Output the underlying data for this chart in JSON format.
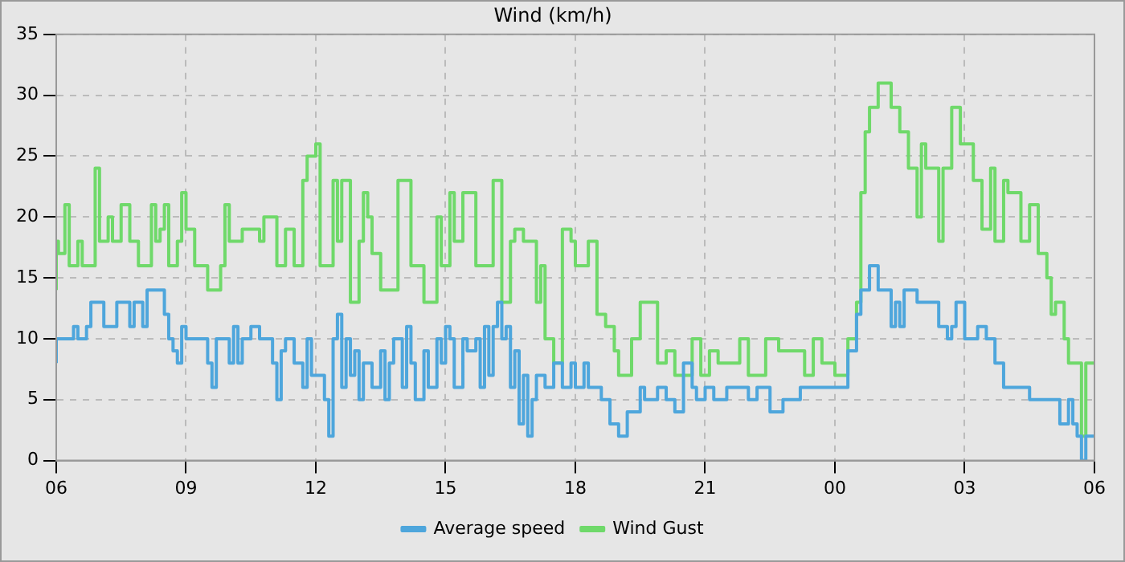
{
  "chart_data": {
    "type": "step",
    "title": "Wind (km/h)",
    "legend": "bottom",
    "grid": true,
    "marker": "none",
    "line_style": "solid",
    "xlim": [
      6,
      30
    ],
    "xticks": [
      {
        "value": 6,
        "label": "06"
      },
      {
        "value": 9,
        "label": "09"
      },
      {
        "value": 12,
        "label": "12"
      },
      {
        "value": 15,
        "label": "15"
      },
      {
        "value": 18,
        "label": "18"
      },
      {
        "value": 21,
        "label": "21"
      },
      {
        "value": 24,
        "label": "00"
      },
      {
        "value": 27,
        "label": "03"
      },
      {
        "value": 30,
        "label": "06"
      }
    ],
    "ylim": [
      0,
      35
    ],
    "yticks": [
      0,
      5,
      10,
      15,
      20,
      25,
      30,
      35
    ],
    "series": [
      {
        "name": "Average speed",
        "color": "#4ea6dc",
        "x": [
          6.0,
          6.4,
          6.5,
          6.7,
          6.8,
          7.1,
          7.4,
          7.7,
          7.8,
          8.0,
          8.1,
          8.5,
          8.6,
          8.7,
          8.8,
          8.9,
          9.0,
          9.5,
          9.6,
          9.7,
          10.0,
          10.1,
          10.2,
          10.3,
          10.5,
          10.7,
          11.0,
          11.1,
          11.2,
          11.3,
          11.5,
          11.7,
          11.8,
          11.9,
          12.2,
          12.3,
          12.4,
          12.5,
          12.6,
          12.7,
          12.8,
          12.9,
          13.0,
          13.1,
          13.3,
          13.5,
          13.6,
          13.7,
          13.8,
          14.0,
          14.1,
          14.2,
          14.3,
          14.5,
          14.6,
          14.8,
          14.9,
          15.0,
          15.1,
          15.2,
          15.4,
          15.5,
          15.7,
          15.8,
          15.9,
          16.0,
          16.1,
          16.2,
          16.3,
          16.4,
          16.5,
          16.6,
          16.7,
          16.8,
          16.9,
          17.0,
          17.1,
          17.3,
          17.5,
          17.7,
          17.9,
          18.0,
          18.2,
          18.3,
          18.6,
          18.8,
          19.0,
          19.2,
          19.5,
          19.6,
          19.9,
          20.1,
          20.3,
          20.5,
          20.7,
          20.8,
          21.0,
          21.2,
          21.5,
          22.0,
          22.2,
          22.5,
          22.8,
          23.2,
          24.3,
          24.5,
          24.6,
          24.8,
          25.0,
          25.3,
          25.4,
          25.5,
          25.6,
          25.9,
          26.4,
          26.6,
          26.7,
          26.8,
          27.0,
          27.3,
          27.5,
          27.7,
          27.9,
          28.5,
          29.2,
          29.4,
          29.5,
          29.6,
          29.7,
          29.8,
          29.95,
          30.0
        ],
        "values": [
          8,
          10,
          11,
          10,
          11,
          13,
          11,
          13,
          11,
          13,
          11,
          14,
          12,
          10,
          9,
          8,
          11,
          10,
          8,
          6,
          10,
          8,
          11,
          8,
          10,
          11,
          10,
          8,
          5,
          9,
          10,
          8,
          6,
          10,
          7,
          5,
          2,
          10,
          12,
          6,
          10,
          7,
          9,
          5,
          8,
          6,
          9,
          5,
          8,
          10,
          6,
          11,
          8,
          5,
          9,
          6,
          10,
          8,
          11,
          10,
          6,
          10,
          9,
          10,
          6,
          11,
          7,
          11,
          13,
          10,
          11,
          6,
          9,
          3,
          7,
          2,
          5,
          7,
          6,
          8,
          6,
          8,
          6,
          8,
          6,
          5,
          3,
          2,
          4,
          6,
          5,
          6,
          5,
          4,
          8,
          6,
          5,
          6,
          5,
          6,
          5,
          6,
          4,
          5,
          6,
          9,
          12,
          14,
          16,
          14,
          11,
          13,
          11,
          14,
          13,
          11,
          10,
          11,
          13,
          10,
          11,
          10,
          8,
          6,
          5,
          3,
          5,
          3,
          2,
          0,
          2,
          2
        ]
      },
      {
        "name": "Wind Gust",
        "color": "#6fd96a",
        "x": [
          6.0,
          6.05,
          6.2,
          6.3,
          6.5,
          6.6,
          6.9,
          7.0,
          7.2,
          7.3,
          7.5,
          7.7,
          7.9,
          8.2,
          8.3,
          8.4,
          8.5,
          8.6,
          8.8,
          8.9,
          9.0,
          9.2,
          9.5,
          9.8,
          9.9,
          10.0,
          10.3,
          10.7,
          10.8,
          11.1,
          11.3,
          11.5,
          11.7,
          11.8,
          12.0,
          12.1,
          12.4,
          12.5,
          12.6,
          12.8,
          13.0,
          13.1,
          13.2,
          13.3,
          13.5,
          13.9,
          14.2,
          14.5,
          14.8,
          14.9,
          15.1,
          15.2,
          15.4,
          15.7,
          15.8,
          16.1,
          16.3,
          16.5,
          16.6,
          16.8,
          17.1,
          17.2,
          17.3,
          17.5,
          17.7,
          17.9,
          18.0,
          18.3,
          18.5,
          18.7,
          18.9,
          19.0,
          19.3,
          19.5,
          19.9,
          20.1,
          20.3,
          20.7,
          20.9,
          21.1,
          21.3,
          21.8,
          22.0,
          22.4,
          22.7,
          23.3,
          23.5,
          23.7,
          24.0,
          24.3,
          24.5,
          24.6,
          24.7,
          24.8,
          25.0,
          25.3,
          25.5,
          25.7,
          25.9,
          26.0,
          26.1,
          26.4,
          26.5,
          26.7,
          26.9,
          27.2,
          27.4,
          27.6,
          27.7,
          27.9,
          28.0,
          28.3,
          28.5,
          28.7,
          28.9,
          29.0,
          29.1,
          29.3,
          29.4,
          29.7,
          29.8,
          29.95,
          30.0
        ],
        "values": [
          14,
          18,
          17,
          21,
          16,
          18,
          16,
          24,
          18,
          20,
          18,
          21,
          18,
          16,
          21,
          18,
          19,
          21,
          16,
          18,
          22,
          19,
          16,
          14,
          16,
          21,
          18,
          19,
          18,
          20,
          16,
          19,
          16,
          23,
          25,
          26,
          16,
          23,
          18,
          23,
          13,
          18,
          22,
          20,
          17,
          14,
          23,
          16,
          13,
          20,
          16,
          22,
          18,
          22,
          16,
          16,
          23,
          13,
          18,
          19,
          18,
          13,
          16,
          10,
          8,
          19,
          18,
          16,
          18,
          12,
          11,
          9,
          7,
          10,
          13,
          8,
          9,
          7,
          10,
          7,
          9,
          8,
          10,
          7,
          10,
          9,
          7,
          10,
          8,
          7,
          10,
          13,
          22,
          27,
          29,
          31,
          29,
          27,
          24,
          20,
          26,
          24,
          18,
          24,
          29,
          26,
          23,
          19,
          24,
          18,
          23,
          22,
          18,
          21,
          17,
          15,
          12,
          13,
          10,
          8,
          2,
          8,
          8
        ]
      }
    ]
  }
}
